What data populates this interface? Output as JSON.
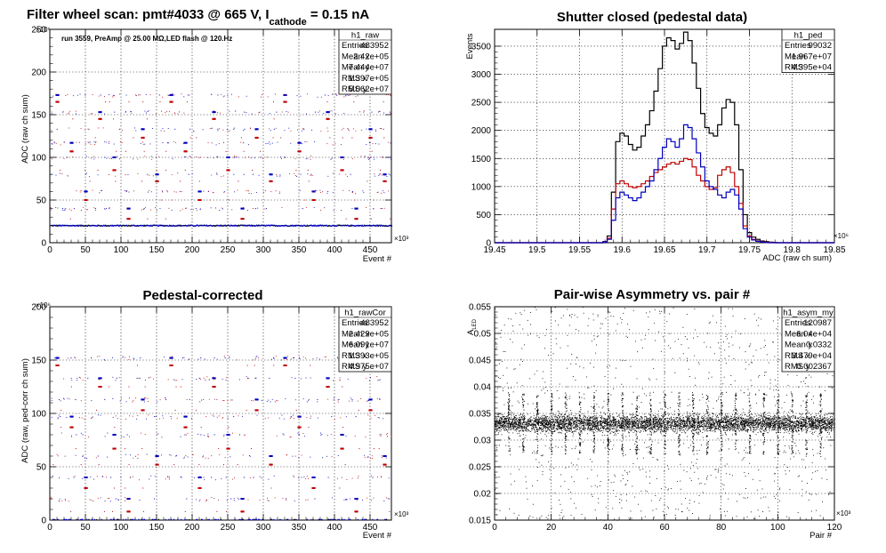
{
  "chart_data": [
    {
      "id": "raw",
      "type": "scatter",
      "title_main": "Filter wheel scan: pmt#4033 @   665 V, I",
      "title_sub": "cathode",
      "title_end": " = 0.15 nA",
      "annotation": "run 3559, PreAmp @ 25.00 MΩ,LED flash @  120.Hz",
      "xlabel": "Event #",
      "ylabel": "ADC (raw ch sum)",
      "x_exponent": "×10³",
      "y_exponent": "×10⁶",
      "xlim": [
        0,
        480
      ],
      "ylim": [
        0,
        250
      ],
      "x_ticks": [
        "0",
        "50",
        "100",
        "150",
        "200",
        "250",
        "300",
        "350",
        "400",
        "450"
      ],
      "y_ticks": [
        "0",
        "50",
        "100",
        "150",
        "200",
        "250"
      ],
      "grid": true,
      "baseline": 20,
      "levels_blue": [
        173,
        153,
        133,
        117,
        100,
        80,
        60,
        40
      ],
      "levels_red": [
        165,
        145,
        123,
        107,
        85,
        72,
        50,
        28
      ],
      "step_period": 20,
      "stats": {
        "name": "h1_raw",
        "rows": [
          [
            "Entries",
            "483952"
          ],
          [
            "Mean x",
            "2.42e+05"
          ],
          [
            "Mean y",
            "7.444e+07"
          ],
          [
            "RMS x",
            "1.397e+05"
          ],
          [
            "RMS y",
            "5.062e+07"
          ]
        ]
      }
    },
    {
      "id": "ped",
      "type": "line",
      "title": "Shutter closed (pedestal data)",
      "xlabel": "ADC (raw ch sum)",
      "ylabel": "Events",
      "x_exponent": "×10⁶",
      "xlim": [
        19.45,
        19.85
      ],
      "ylim": [
        0,
        3800
      ],
      "x_ticks": [
        "19.45",
        "19.5",
        "19.55",
        "19.6",
        "19.65",
        "19.7",
        "19.75",
        "19.8",
        "19.85"
      ],
      "y_ticks": [
        "0",
        "500",
        "1000",
        "1500",
        "2000",
        "2500",
        "3000",
        "3500"
      ],
      "grid": true,
      "series": [
        {
          "color": "#000000",
          "x": [
            19.575,
            19.58,
            19.585,
            19.59,
            19.595,
            19.6,
            19.605,
            19.61,
            19.615,
            19.62,
            19.625,
            19.63,
            19.635,
            19.64,
            19.645,
            19.65,
            19.655,
            19.66,
            19.665,
            19.67,
            19.675,
            19.68,
            19.685,
            19.69,
            19.695,
            19.7,
            19.705,
            19.71,
            19.715,
            19.72,
            19.725,
            19.73,
            19.735,
            19.74,
            19.745,
            19.75,
            19.755,
            19.76,
            19.765,
            19.77,
            19.775,
            19.78,
            19.785,
            19.79
          ],
          "y": [
            0,
            20,
            120,
            900,
            1800,
            1950,
            1900,
            1750,
            1650,
            1700,
            1900,
            2100,
            2350,
            2700,
            3100,
            3500,
            3650,
            3600,
            3450,
            3550,
            3750,
            3600,
            3200,
            2750,
            2300,
            2050,
            1950,
            1900,
            2100,
            2400,
            2550,
            2500,
            2100,
            1300,
            500,
            180,
            100,
            60,
            30,
            20,
            10,
            5,
            0,
            0
          ]
        },
        {
          "color": "#c00000",
          "x": [
            19.575,
            19.58,
            19.585,
            19.59,
            19.595,
            19.6,
            19.605,
            19.61,
            19.615,
            19.62,
            19.625,
            19.63,
            19.635,
            19.64,
            19.645,
            19.65,
            19.655,
            19.66,
            19.665,
            19.67,
            19.675,
            19.68,
            19.685,
            19.69,
            19.695,
            19.7,
            19.705,
            19.71,
            19.715,
            19.72,
            19.725,
            19.73,
            19.735,
            19.74,
            19.745,
            19.75,
            19.755,
            19.76,
            19.765,
            19.77,
            19.775,
            19.78,
            19.785,
            19.79
          ],
          "y": [
            0,
            15,
            80,
            600,
            1050,
            1100,
            1050,
            1000,
            980,
            1000,
            1050,
            1100,
            1180,
            1250,
            1300,
            1350,
            1400,
            1430,
            1400,
            1450,
            1500,
            1480,
            1350,
            1200,
            1100,
            1000,
            950,
            980,
            1200,
            1300,
            1350,
            1250,
            1000,
            700,
            300,
            120,
            60,
            30,
            15,
            10,
            5,
            0,
            0,
            0
          ]
        },
        {
          "color": "#0000c0",
          "x": [
            19.575,
            19.58,
            19.585,
            19.59,
            19.595,
            19.6,
            19.605,
            19.61,
            19.615,
            19.62,
            19.625,
            19.63,
            19.635,
            19.64,
            19.645,
            19.65,
            19.655,
            19.66,
            19.665,
            19.67,
            19.675,
            19.68,
            19.685,
            19.69,
            19.695,
            19.7,
            19.705,
            19.71,
            19.715,
            19.72,
            19.725,
            19.73,
            19.735,
            19.74,
            19.745,
            19.75,
            19.755,
            19.76,
            19.765,
            19.77,
            19.775,
            19.78,
            19.785,
            19.79
          ],
          "y": [
            0,
            10,
            60,
            400,
            800,
            900,
            850,
            800,
            750,
            800,
            900,
            1000,
            1100,
            1300,
            1500,
            1700,
            1850,
            1800,
            1700,
            1850,
            2100,
            2050,
            1850,
            1600,
            1350,
            1100,
            1000,
            950,
            850,
            800,
            900,
            950,
            850,
            600,
            250,
            100,
            50,
            25,
            10,
            5,
            0,
            0,
            0,
            0
          ]
        }
      ],
      "stats": {
        "name": "h1_ped",
        "rows": [
          [
            "Entries",
            "99032"
          ],
          [
            "Mean",
            "1.967e+07"
          ],
          [
            "RMS",
            "4.395e+04"
          ]
        ]
      }
    },
    {
      "id": "cor",
      "type": "scatter",
      "title": "Pedestal-corrected",
      "xlabel": "Event #",
      "ylabel": "ADC (raw, ped-corr ch sum)",
      "x_exponent": "×10³",
      "y_exponent": "×10⁶",
      "xlim": [
        0,
        480
      ],
      "ylim": [
        0,
        200
      ],
      "x_ticks": [
        "0",
        "50",
        "100",
        "150",
        "200",
        "250",
        "300",
        "350",
        "400",
        "450"
      ],
      "y_ticks": [
        "0",
        "50",
        "100",
        "150",
        "200"
      ],
      "grid": true,
      "baseline": 0,
      "levels_blue": [
        152,
        133,
        113,
        97,
        80,
        60,
        40,
        20
      ],
      "levels_red": [
        145,
        125,
        103,
        87,
        67,
        52,
        30,
        8
      ],
      "step_period": 20,
      "stats": {
        "name": "h1_rawCor",
        "rows": [
          [
            "Entries",
            "483952"
          ],
          [
            "Mean x",
            "2.429e+05"
          ],
          [
            "Mean y",
            "6.091e+07"
          ],
          [
            "RMS x",
            "1.393e+05"
          ],
          [
            "RMS y",
            "4.975e+07"
          ]
        ]
      }
    },
    {
      "id": "asym",
      "type": "scatter",
      "title": "Pair-wise Asymmetry vs. pair #",
      "xlabel": "Pair #",
      "ylabel": "A",
      "ylabel_sub": "LED",
      "x_exponent": "×10³",
      "xlim": [
        0,
        120
      ],
      "ylim": [
        0.015,
        0.055
      ],
      "x_ticks": [
        "0",
        "20",
        "40",
        "60",
        "80",
        "100",
        "120"
      ],
      "y_ticks": [
        "0.015",
        "0.02",
        "0.025",
        "0.03",
        "0.035",
        "0.04",
        "0.045",
        "0.05",
        "0.055"
      ],
      "grid": true,
      "band_center": 0.0332,
      "band_halfwidth": 0.0013,
      "spike_period": 5,
      "stats": {
        "name": "h1_asym_my",
        "rows": [
          [
            "Entries",
            "120987"
          ],
          [
            "Mean x",
            "6.04e+04"
          ],
          [
            "Mean y",
            "0.0332"
          ],
          [
            "RMS x",
            "3.479e+04"
          ],
          [
            "RMS y",
            "0.002367"
          ]
        ]
      }
    }
  ]
}
